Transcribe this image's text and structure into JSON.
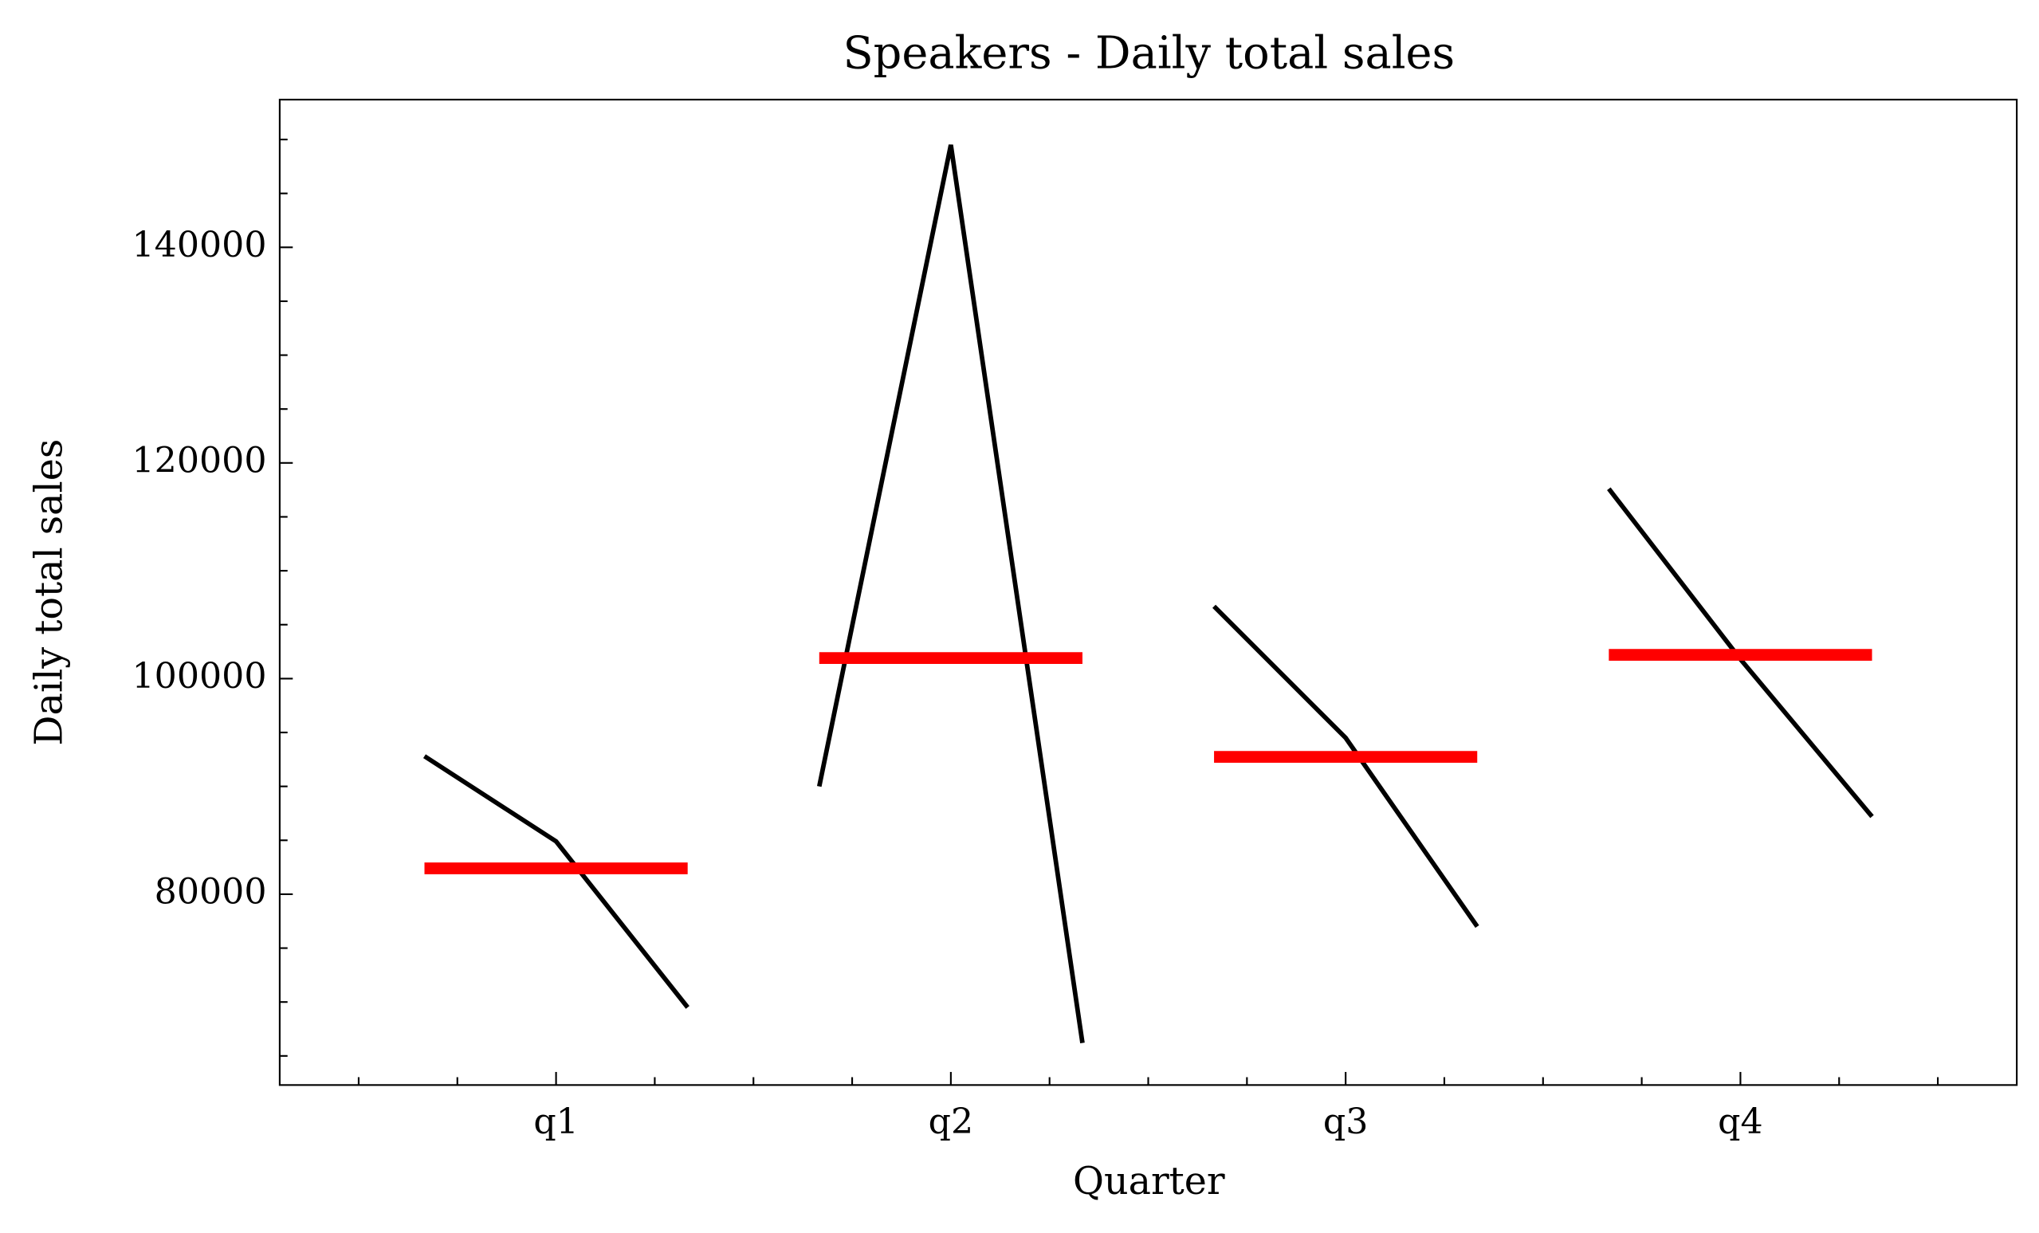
{
  "chart_data": {
    "type": "quarter",
    "title": "Speakers - Daily total sales",
    "x_label": "Quarter",
    "y_label": "Daily total sales",
    "categories": [
      "q1",
      "q2",
      "q3",
      "q4"
    ],
    "values": [
      [
        92800,
        84900,
        69500
      ],
      [
        90000,
        149500,
        66200
      ],
      [
        106700,
        94500,
        77000
      ],
      [
        117600,
        101800,
        87200
      ]
    ],
    "means": [
      82400,
      101900,
      92733,
      102200
    ],
    "line_color": "#000000",
    "mean_color": "#ff0000",
    "xlim": [
      -0.7,
      3.7
    ],
    "x_minor_ticks": [
      -0.5,
      -0.25,
      0.25,
      0.5,
      0.75,
      1.25,
      1.5,
      1.75,
      2.25,
      2.5,
      2.75,
      3.25,
      3.5
    ],
    "ylim": [
      62300,
      153700
    ],
    "yticks": [
      80000,
      100000,
      120000,
      140000
    ],
    "y_minor_ticks": [
      65000,
      70000,
      75000,
      85000,
      90000,
      95000,
      105000,
      110000,
      115000,
      125000,
      130000,
      135000,
      145000,
      150000
    ]
  }
}
